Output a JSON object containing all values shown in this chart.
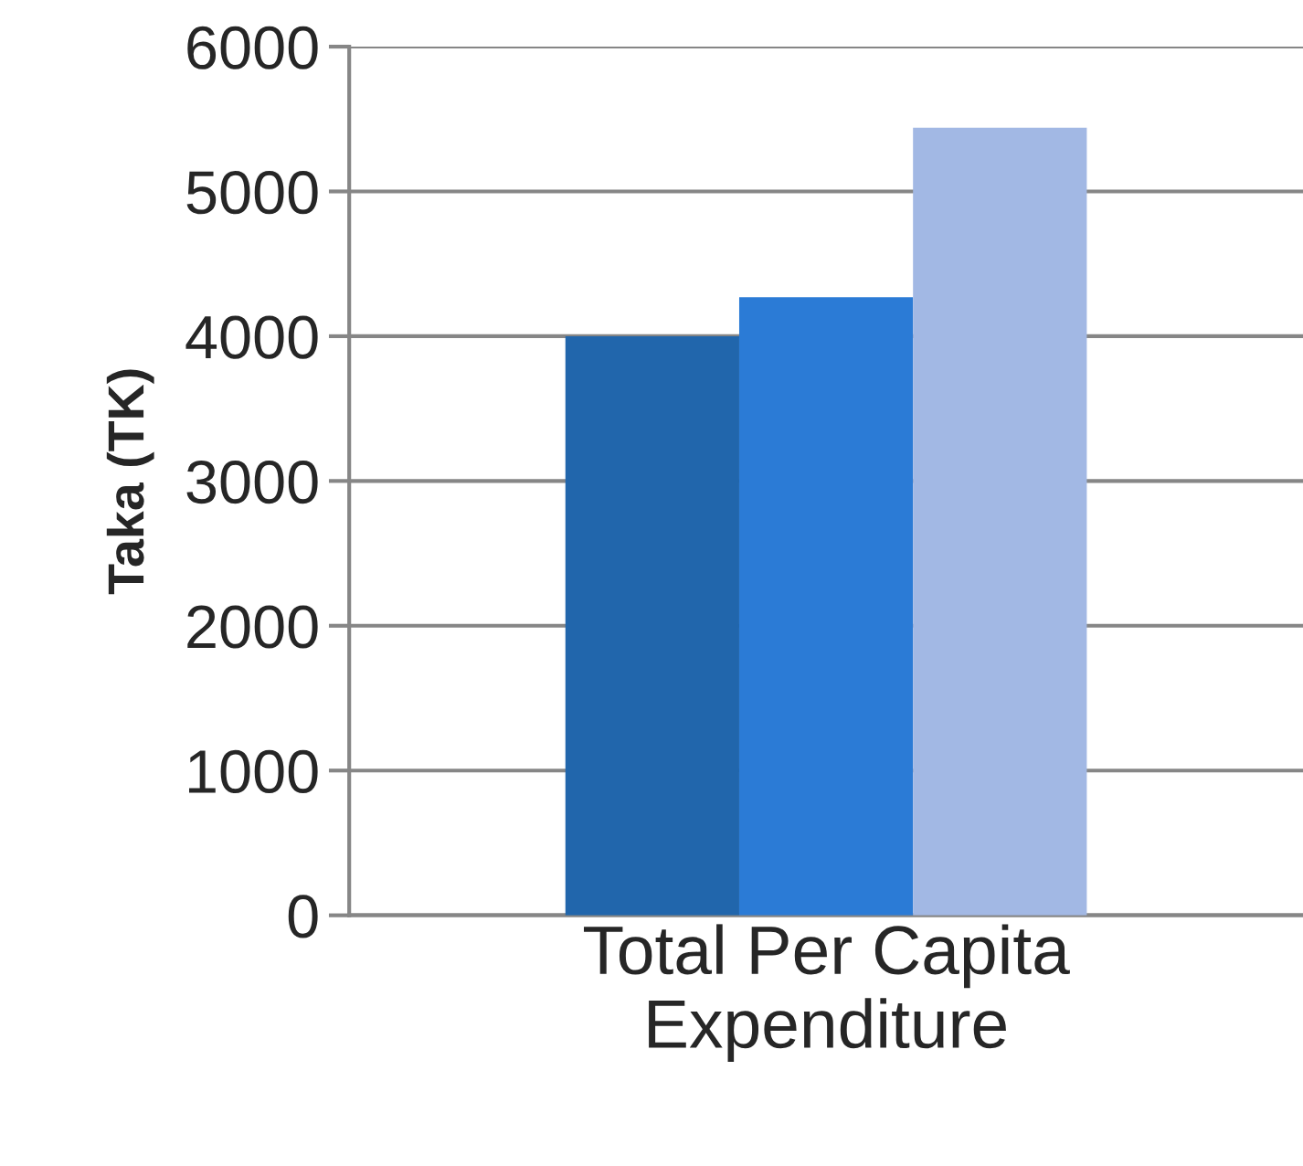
{
  "chart_data": {
    "type": "bar",
    "ylabel": "Taka (TK)",
    "categories": [
      "Total Per Capita\nExpenditure"
    ],
    "series": [
      {
        "color": "#2166ac",
        "values": [
          4000
        ]
      },
      {
        "color": "#2b7bd6",
        "values": [
          4270
        ]
      },
      {
        "color": "#a2b8e4",
        "values": [
          5440
        ]
      }
    ],
    "ylim": [
      0,
      6000
    ],
    "yticks": [
      0,
      1000,
      2000,
      3000,
      4000,
      5000,
      6000
    ],
    "grid": "y"
  }
}
